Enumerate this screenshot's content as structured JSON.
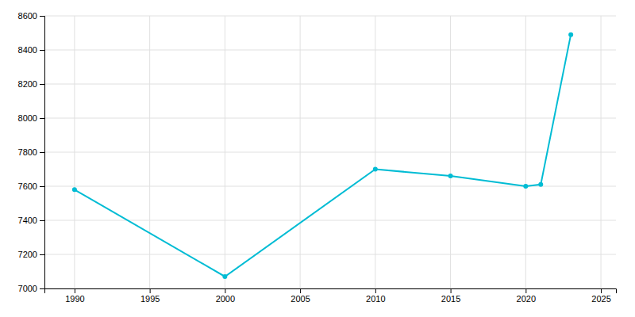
{
  "chart_data": {
    "type": "line",
    "x": [
      1990,
      2000,
      2010,
      2015,
      2020,
      2021,
      2023
    ],
    "values": [
      7580,
      7070,
      7700,
      7660,
      7600,
      7610,
      8490
    ],
    "color": "#00bcd4",
    "marker": "circle",
    "xlim": [
      1988,
      2026
    ],
    "ylim": [
      7000,
      8600
    ],
    "xticks": [
      1990,
      1995,
      2000,
      2005,
      2010,
      2015,
      2020,
      2025
    ],
    "yticks": [
      7000,
      7200,
      7400,
      7600,
      7800,
      8000,
      8200,
      8400,
      8600
    ],
    "grid": true
  }
}
